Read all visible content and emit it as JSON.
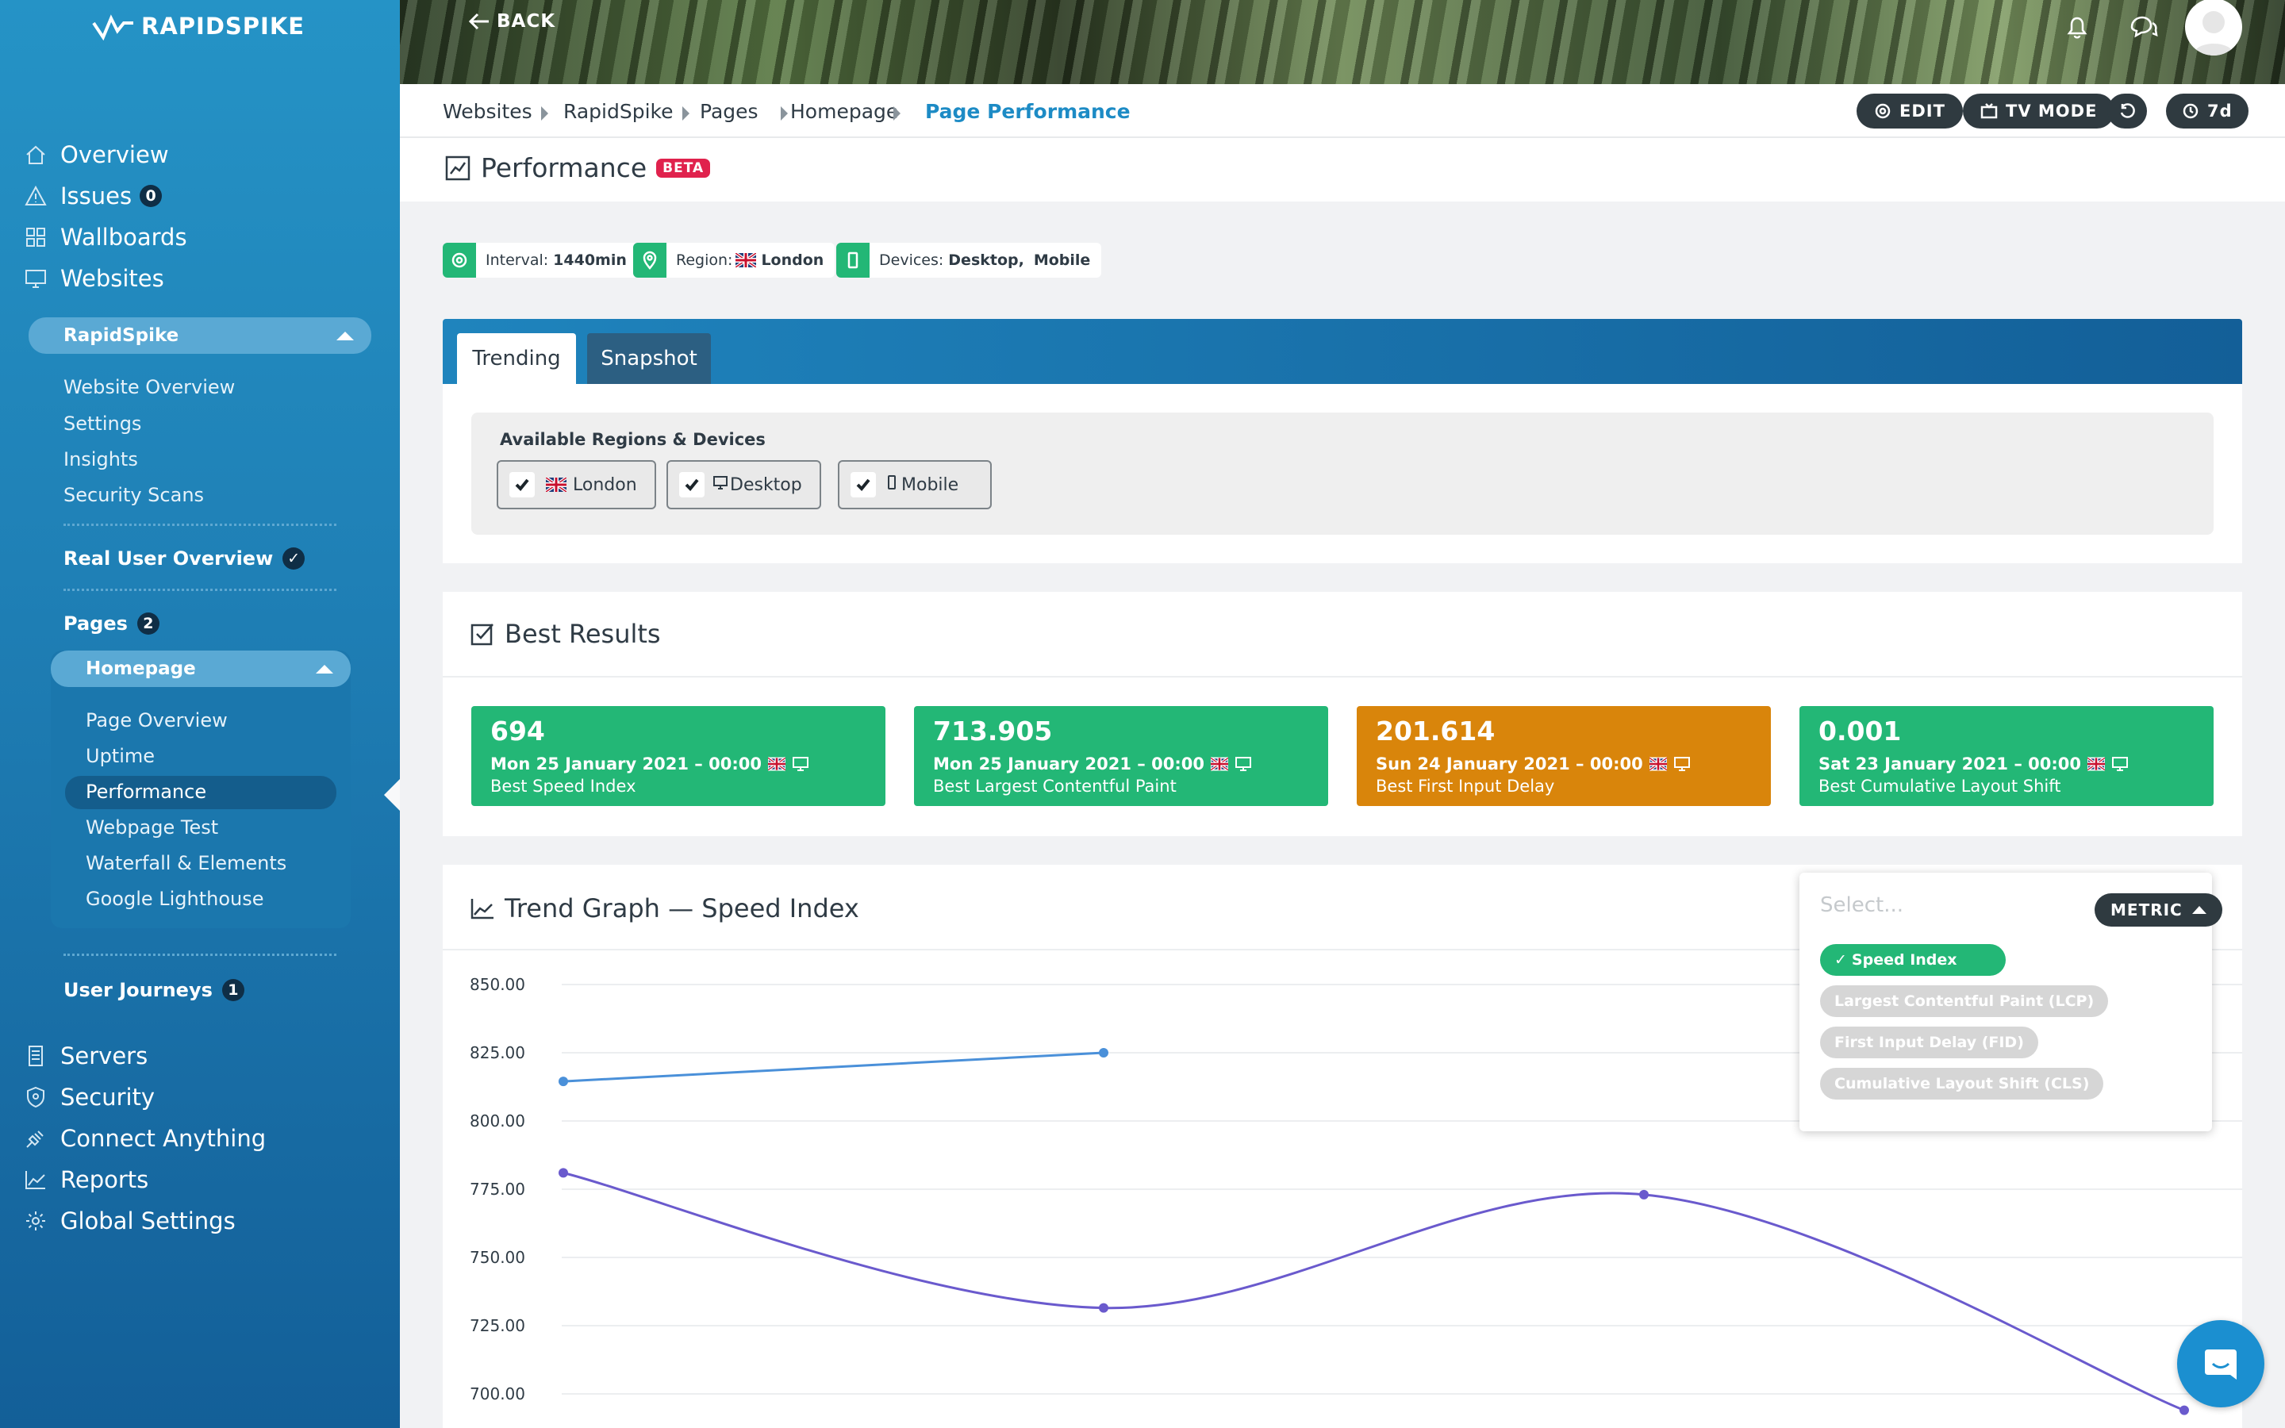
{
  "brand": {
    "name": "RAPIDSPIKE"
  },
  "sidebar": {
    "main": [
      {
        "label": "Overview",
        "icon": "home-icon"
      },
      {
        "label": "Issues",
        "icon": "warning-icon",
        "count": "0"
      },
      {
        "label": "Wallboards",
        "icon": "grid-icon"
      },
      {
        "label": "Websites",
        "icon": "monitor-icon"
      }
    ],
    "website": {
      "name": "RapidSpike",
      "links": [
        "Website Overview",
        "Settings",
        "Insights",
        "Security Scans"
      ],
      "real_user": "Real User Overview",
      "pages_label": "Pages",
      "pages_count": "2",
      "page": {
        "name": "Homepage",
        "links": [
          "Page Overview",
          "Uptime",
          "Performance",
          "Webpage Test",
          "Waterfall & Elements",
          "Google Lighthouse"
        ]
      },
      "journeys_label": "User Journeys",
      "journeys_count": "1"
    },
    "bottom": [
      {
        "label": "Servers",
        "icon": "server-icon"
      },
      {
        "label": "Security",
        "icon": "shield-icon"
      },
      {
        "label": "Connect Anything",
        "icon": "plug-icon"
      },
      {
        "label": "Reports",
        "icon": "area-chart-icon"
      },
      {
        "label": "Global Settings",
        "icon": "gear-icon"
      }
    ]
  },
  "header": {
    "back_label": "BACK"
  },
  "breadcrumb": [
    "Websites",
    "RapidSpike",
    "Pages",
    "Homepage",
    "Page Performance"
  ],
  "actions": {
    "edit": "EDIT",
    "tv": "TV MODE",
    "range": "7d"
  },
  "page": {
    "title": "Performance",
    "badge": "BETA"
  },
  "info": {
    "interval_label": "Interval:",
    "interval_value": "1440min",
    "region_label": "Region:",
    "region_value": "London",
    "devices_label": "Devices:",
    "devices_value": "Desktop,",
    "devices_value2": "Mobile"
  },
  "tabs": [
    "Trending",
    "Snapshot"
  ],
  "regions": {
    "title": "Available Regions & Devices",
    "items": [
      "London",
      "Desktop",
      "Mobile"
    ]
  },
  "best": {
    "title": "Best Results",
    "cards": [
      {
        "value": "694",
        "date": "Mon 25 January 2021 – 00:00",
        "label": "Best Speed Index",
        "color": "#23b776"
      },
      {
        "value": "713.905",
        "date": "Mon 25 January 2021 – 00:00",
        "label": "Best Largest Contentful Paint",
        "color": "#23b776"
      },
      {
        "value": "201.614",
        "date": "Sun 24 January 2021 – 00:00",
        "label": "Best First Input Delay",
        "color": "#d9850b"
      },
      {
        "value": "0.001",
        "date": "Sat 23 January 2021 – 00:00",
        "label": "Best Cumulative Layout Shift",
        "color": "#23b776"
      }
    ]
  },
  "trend": {
    "title": "Trend Graph — Speed Index"
  },
  "metric": {
    "placeholder": "Select...",
    "button": "METRIC",
    "options": [
      {
        "label": "Speed Index",
        "selected": true
      },
      {
        "label": "Largest Contentful Paint (LCP)",
        "selected": false
      },
      {
        "label": "First Input Delay (FID)",
        "selected": false
      },
      {
        "label": "Cumulative Layout Shift (CLS)",
        "selected": false
      }
    ]
  },
  "chart_data": {
    "type": "line",
    "title": "Trend Graph — Speed Index",
    "ylim": [
      687.5,
      862.5
    ],
    "y_ticks": [
      "850.00",
      "825.00",
      "800.00",
      "775.00",
      "750.00",
      "725.00",
      "700.00"
    ],
    "y_tick_values": [
      850,
      825,
      800,
      775,
      750,
      725,
      700
    ],
    "x": [
      0,
      1,
      2,
      3
    ],
    "series": [
      {
        "color": "#4a90d9",
        "values": [
          814.5,
          825,
          null,
          null
        ]
      },
      {
        "color": "#6a5acd",
        "values": [
          781,
          731.5,
          773,
          694
        ]
      }
    ]
  }
}
